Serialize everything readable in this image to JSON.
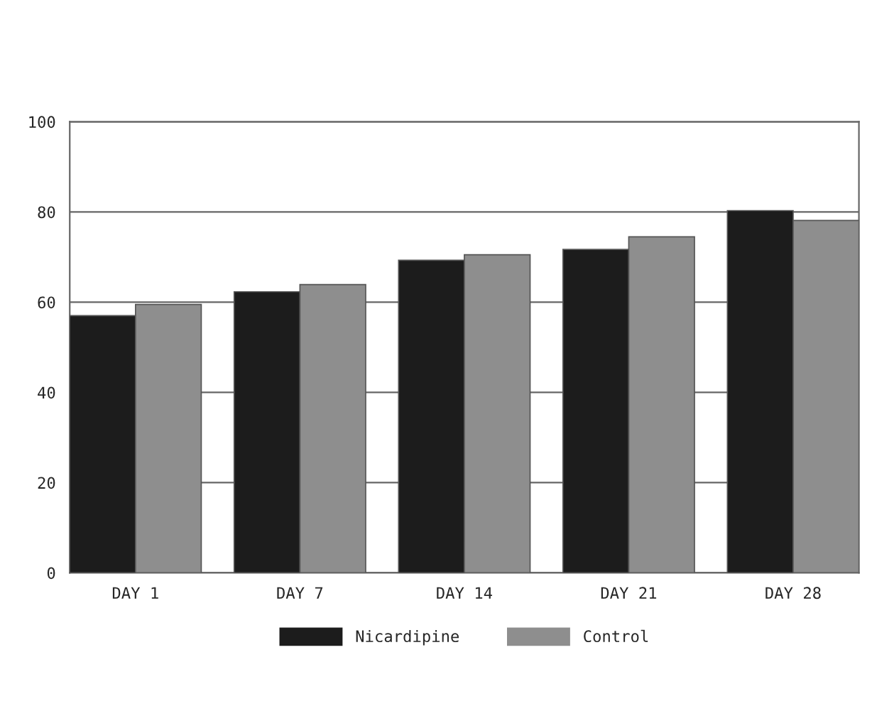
{
  "chart_data": {
    "type": "bar",
    "categories": [
      "DAY 1",
      "DAY 7",
      "DAY 14",
      "DAY 21",
      "DAY 28"
    ],
    "series": [
      {
        "name": "Nicardipine",
        "color": "#1c1c1c",
        "values": [
          57,
          62.3,
          69.3,
          71.7,
          80.3
        ]
      },
      {
        "name": "Control",
        "color": "#8e8e8e",
        "values": [
          59.5,
          63.9,
          70.5,
          74.5,
          78.1
        ]
      }
    ],
    "ylim": [
      0,
      100
    ],
    "yticks": [
      0,
      20,
      40,
      60,
      80,
      100
    ],
    "grid": "y",
    "legend": "bottom"
  }
}
